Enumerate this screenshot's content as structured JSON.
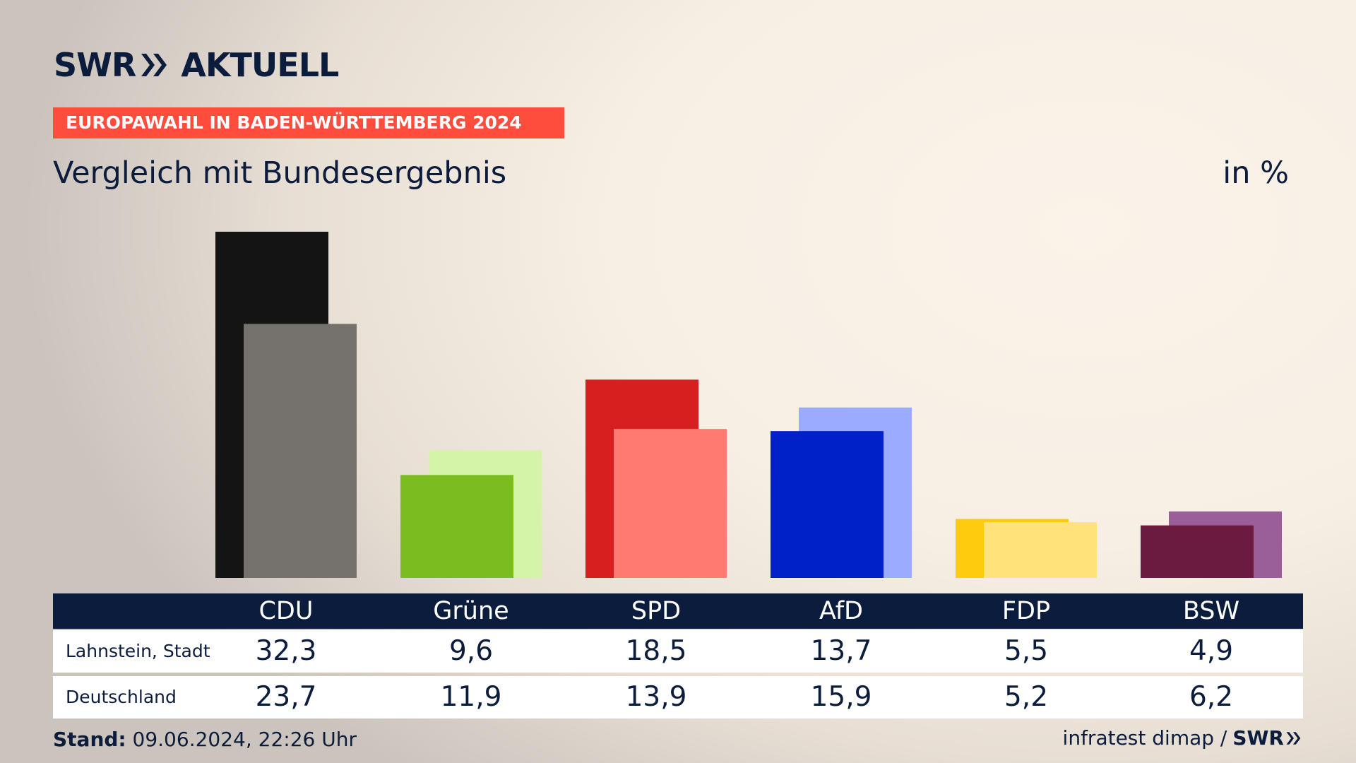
{
  "header": {
    "logo_text": "SWR",
    "logo_suffix": "AKTUELL",
    "kicker": "EUROPAWAHL IN BADEN-WÜRTTEMBERG 2024",
    "subtitle": "Vergleich mit Bundesergebnis",
    "unit": "in %"
  },
  "chart_data": {
    "type": "bar",
    "categories": [
      "CDU",
      "Grüne",
      "SPD",
      "AfD",
      "FDP",
      "BSW"
    ],
    "series": [
      {
        "name": "Lahnstein, Stadt",
        "values": [
          32.3,
          9.6,
          18.5,
          13.7,
          5.5,
          4.9
        ],
        "colors": [
          "#141414",
          "#7bbd1e",
          "#d71f1f",
          "#0021c8",
          "#ffcc0d",
          "#6b1a40"
        ]
      },
      {
        "name": "Deutschland",
        "values": [
          23.7,
          11.9,
          13.9,
          15.9,
          5.2,
          6.2
        ],
        "colors": [
          "#75716d",
          "#d4f5a8",
          "#ff7a71",
          "#9babff",
          "#ffe27a",
          "#9a5e98"
        ]
      }
    ],
    "ylim": [
      0,
      32.3
    ]
  },
  "table": {
    "rows": [
      {
        "label": "Lahnstein, Stadt",
        "values": [
          "32,3",
          "9,6",
          "18,5",
          "13,7",
          "5,5",
          "4,9"
        ]
      },
      {
        "label": "Deutschland",
        "values": [
          "23,7",
          "11,9",
          "13,9",
          "15,9",
          "5,2",
          "6,2"
        ]
      }
    ]
  },
  "footer": {
    "stand_label": "Stand:",
    "stand_value": "09.06.2024, 22:26 Uhr",
    "source": "infratest dimap /",
    "source_brand": "SWR"
  }
}
